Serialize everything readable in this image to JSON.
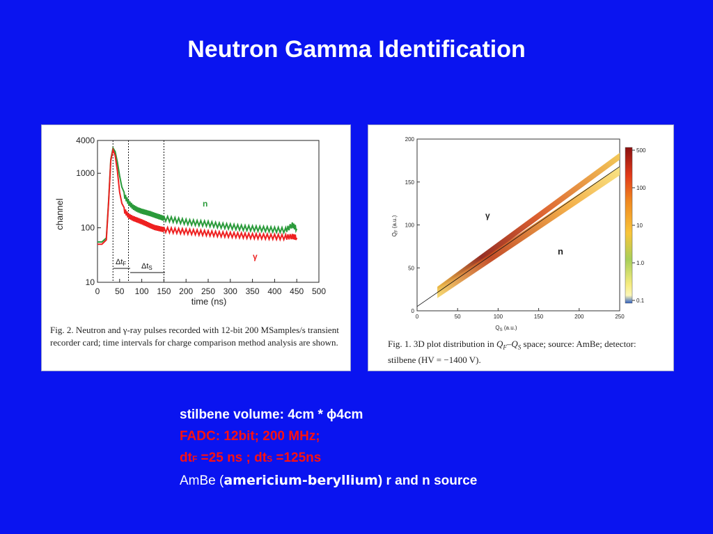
{
  "slide": {
    "title": "Neutron  Gamma  Identification",
    "background_color": "#0a14f0"
  },
  "figure_left": {
    "caption": "Fig. 2. Neutron and γ-ray pulses recorded with 12-bit 200 MSamples/s transient recorder card; time intervals for charge comparison method analysis are shown.",
    "annotations": {
      "neutron": "n",
      "gamma": "γ",
      "dtF": "Δt",
      "dtF_sub": "F",
      "dtS": "Δt",
      "dtS_sub": "S"
    },
    "chart_data": {
      "type": "line",
      "xlabel": "time (ns)",
      "ylabel": "channel",
      "xlim": [
        0,
        500
      ],
      "ylim": [
        10,
        4000
      ],
      "yscale": "log",
      "x_ticks": [
        "0",
        "50",
        "100",
        "150",
        "200",
        "250",
        "300",
        "350",
        "400",
        "450",
        "500"
      ],
      "y_ticks": [
        "10",
        "100",
        "1000",
        "4000"
      ],
      "vlines": [
        35,
        70,
        150
      ],
      "series": [
        {
          "name": "n",
          "color": "#2a9a3a",
          "x": [
            0,
            10,
            20,
            25,
            30,
            35,
            40,
            45,
            50,
            55,
            60,
            70,
            80,
            90,
            100,
            110,
            120,
            130,
            140,
            150,
            175,
            200,
            225,
            250,
            275,
            300,
            325,
            350,
            375,
            400,
            425,
            440,
            450
          ],
          "y": [
            55,
            55,
            65,
            300,
            1800,
            2900,
            2500,
            1600,
            900,
            560,
            400,
            290,
            240,
            215,
            200,
            190,
            180,
            168,
            158,
            148,
            138,
            128,
            122,
            118,
            110,
            105,
            100,
            97,
            95,
            92,
            90,
            112,
            96
          ]
        },
        {
          "name": "γ",
          "color": "#ee2020",
          "x": [
            0,
            10,
            20,
            25,
            30,
            35,
            40,
            45,
            50,
            55,
            60,
            70,
            80,
            90,
            100,
            110,
            120,
            130,
            140,
            150,
            175,
            200,
            225,
            250,
            275,
            300,
            325,
            350,
            375,
            400,
            425,
            440,
            450
          ],
          "y": [
            50,
            50,
            60,
            280,
            1700,
            2700,
            2100,
            1100,
            450,
            280,
            210,
            165,
            148,
            138,
            128,
            118,
            108,
            100,
            96,
            92,
            88,
            85,
            82,
            79,
            76,
            74,
            72,
            70,
            69,
            68,
            67,
            69,
            66
          ]
        }
      ]
    }
  },
  "figure_right": {
    "caption_part1": "Fig. 1.  3D plot distribution in ",
    "caption_q": "Q",
    "caption_qf_sub": "F",
    "caption_dash": "–Q",
    "caption_qs_sub": "S",
    "caption_part2": " space; source: AmBe; detector: stilbene (HV = −1400 V).",
    "annotations": {
      "gamma": "γ",
      "neutron": "n"
    },
    "chart_data": {
      "type": "heatmap",
      "xlabel": "Q",
      "xlabel_sub": "S",
      "xlabel_unit": " (a.u.)",
      "ylabel": "Q",
      "ylabel_sub": "F",
      "ylabel_unit": " (a.u.)",
      "xlim": [
        0,
        250
      ],
      "ylim": [
        0,
        200
      ],
      "x_ticks": [
        "0",
        "50",
        "100",
        "150",
        "200",
        "250"
      ],
      "y_ticks": [
        "0",
        "50",
        "100",
        "150",
        "200"
      ],
      "colorbar_ticks": [
        "500",
        "100",
        "10",
        "1.0",
        "0.1"
      ],
      "bands": [
        {
          "name": "gamma-band",
          "x_start": 25,
          "y_start": 24,
          "x_end": 250,
          "y_end": 180
        },
        {
          "name": "neutron-band",
          "x_start": 25,
          "y_start": 20,
          "x_end": 250,
          "y_end": 163
        }
      ],
      "separation_line": {
        "x_start": 0,
        "y_start": 5,
        "x_end": 250,
        "y_end": 168
      }
    }
  },
  "info": {
    "line1": "stilbene volume:  4cm * ϕ4cm",
    "line2": "FADC: 12bit; 200 MHz;",
    "line3_dt1": "dt",
    "line3_sub1": "F",
    "line3_mid": " =25 ns ;   dt",
    "line3_sub2": "S",
    "line3_end": " =125ns",
    "line4_a": "AmBe (",
    "line4_b": "americium-beryllium",
    "line4_c": ")  r and n source"
  }
}
